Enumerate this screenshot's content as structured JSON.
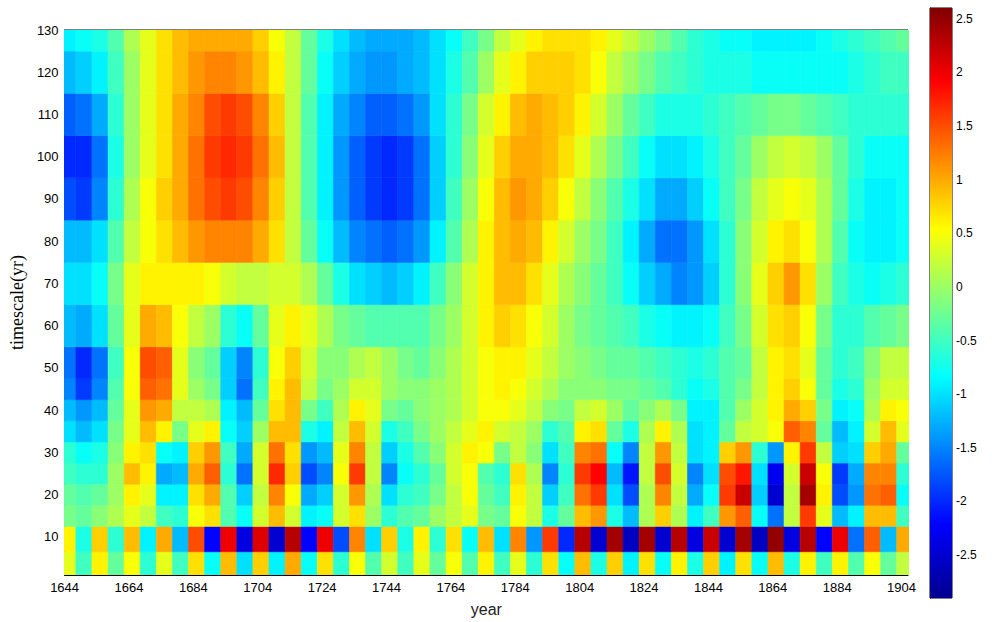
{
  "chart_data": {
    "type": "heatmap",
    "xlabel": "year",
    "ylabel": "timescale(yr)",
    "xlim": [
      1644,
      1906
    ],
    "xticks": [
      1644,
      1664,
      1684,
      1704,
      1724,
      1744,
      1764,
      1784,
      1804,
      1824,
      1844,
      1864,
      1884,
      1904
    ],
    "ylim": [
      1,
      130
    ],
    "yticks": [
      10,
      20,
      30,
      40,
      50,
      60,
      70,
      80,
      90,
      100,
      110,
      120,
      130
    ],
    "grid": false,
    "color_range": [
      -2.9,
      2.6
    ],
    "color_ticks": [
      2.5,
      2,
      1.5,
      1,
      0.5,
      0,
      -0.5,
      -1,
      -1.5,
      -2,
      -2.5
    ],
    "x": [
      1645,
      1650,
      1655,
      1660,
      1665,
      1670,
      1675,
      1680,
      1685,
      1690,
      1695,
      1700,
      1705,
      1710,
      1715,
      1720,
      1725,
      1730,
      1735,
      1740,
      1745,
      1750,
      1755,
      1760,
      1765,
      1770,
      1775,
      1780,
      1785,
      1790,
      1795,
      1800,
      1805,
      1810,
      1815,
      1820,
      1825,
      1830,
      1835,
      1840,
      1845,
      1850,
      1855,
      1860,
      1865,
      1870,
      1875,
      1880,
      1885,
      1890,
      1895,
      1900,
      1905
    ],
    "y": [
      3,
      10,
      15,
      20,
      25,
      30,
      35,
      40,
      45,
      50,
      60,
      70,
      80,
      90,
      100,
      110,
      120,
      130
    ],
    "values": [
      [
        0.4,
        -0.5,
        0.6,
        -0.3,
        0.5,
        -0.6,
        0.4,
        -0.5,
        0.7,
        -0.8,
        0.9,
        -1.0,
        0.8,
        -0.9,
        1.0,
        -0.8,
        0.7,
        -0.6,
        0.5,
        -0.4,
        0.3,
        -0.5,
        0.4,
        -0.3,
        0.5,
        -0.4,
        0.6,
        -0.5,
        0.4,
        -0.6,
        0.7,
        -0.8,
        0.9,
        -0.7,
        0.8,
        -0.9,
        0.7,
        -0.8,
        0.6,
        -0.7,
        0.8,
        -0.9,
        0.7,
        -0.8,
        0.9,
        -0.7,
        0.6,
        -0.5,
        0.6,
        -0.4,
        0.5,
        -0.3,
        0.2
      ],
      [
        0.6,
        -0.7,
        0.8,
        -0.6,
        0.9,
        -0.9,
        1.0,
        -1.2,
        1.5,
        -2.2,
        2.0,
        -2.4,
        2.1,
        -2.5,
        2.3,
        -2.2,
        2.0,
        -1.8,
        1.2,
        -1.0,
        0.8,
        -0.7,
        0.6,
        -0.6,
        0.7,
        -0.8,
        0.9,
        -1.0,
        1.2,
        -1.4,
        1.6,
        -2.0,
        2.3,
        -2.5,
        2.4,
        -2.6,
        2.4,
        -2.5,
        2.3,
        -2.4,
        2.2,
        -2.5,
        2.4,
        -2.6,
        2.5,
        -2.4,
        2.3,
        -2.2,
        2.0,
        -1.6,
        1.4,
        -1.2,
        1.0
      ],
      [
        -0.2,
        -0.3,
        -0.1,
        0.1,
        0.4,
        0.2,
        -0.5,
        -0.6,
        0.5,
        0.7,
        -0.4,
        -0.8,
        0.3,
        0.9,
        0.3,
        -0.9,
        -0.8,
        0.3,
        0.7,
        0.0,
        -0.6,
        -0.4,
        -0.3,
        0.0,
        0.2,
        0.4,
        -0.2,
        -0.3,
        0.5,
        0.2,
        -0.7,
        -0.3,
        0.9,
        1.1,
        -0.7,
        -1.2,
        0.1,
        0.8,
        0.1,
        -0.9,
        -0.5,
        1.1,
        1.4,
        -0.8,
        -1.6,
        0.2,
        1.6,
        0.4,
        -1.2,
        -0.9,
        0.9,
        0.9,
        -0.5
      ],
      [
        -0.3,
        -0.4,
        -0.3,
        0.0,
        0.6,
        0.4,
        -0.9,
        -0.9,
        0.7,
        1.0,
        -0.4,
        -1.1,
        0.2,
        1.2,
        0.5,
        -1.3,
        -1.1,
        0.3,
        1.1,
        0.1,
        -1.0,
        -0.6,
        -0.5,
        -0.2,
        0.2,
        0.5,
        -0.3,
        -0.5,
        0.6,
        0.2,
        -1.1,
        -0.5,
        1.3,
        1.6,
        -1.0,
        -1.8,
        0.1,
        1.2,
        0.2,
        -1.3,
        -0.8,
        1.6,
        2.2,
        -1.1,
        -2.5,
        0.2,
        2.4,
        0.6,
        -1.8,
        -1.4,
        1.3,
        1.4,
        -0.8
      ],
      [
        -0.5,
        -0.6,
        -0.6,
        0.0,
        0.9,
        0.6,
        -1.3,
        -1.2,
        1.0,
        1.4,
        -0.6,
        -1.6,
        0.3,
        1.7,
        0.8,
        -1.8,
        -1.5,
        0.5,
        1.6,
        0.2,
        -1.5,
        -0.8,
        -0.6,
        -0.3,
        0.3,
        0.5,
        -0.4,
        -0.6,
        0.7,
        0.1,
        -1.5,
        -0.6,
        1.6,
        1.9,
        -1.2,
        -2.1,
        0.2,
        1.5,
        0.3,
        -1.5,
        -1.0,
        1.5,
        1.8,
        -1.0,
        -2.3,
        0.3,
        2.2,
        0.5,
        -1.9,
        -1.3,
        1.2,
        1.2,
        -0.6
      ],
      [
        -0.6,
        -0.8,
        -0.7,
        -0.1,
        0.6,
        0.7,
        -0.8,
        -0.9,
        0.8,
        1.1,
        -0.5,
        -1.3,
        0.3,
        1.3,
        0.7,
        -1.4,
        -1.2,
        0.4,
        1.2,
        0.2,
        -1.1,
        -0.7,
        -0.4,
        -0.1,
        0.3,
        0.6,
        0.5,
        -0.2,
        0.2,
        -0.1,
        -1.0,
        -0.5,
        1.2,
        1.3,
        -0.8,
        -1.5,
        0.2,
        1.1,
        0.2,
        -1.0,
        -0.9,
        0.8,
        1.1,
        -0.6,
        -1.4,
        0.6,
        1.6,
        0.2,
        -1.1,
        -1.0,
        0.8,
        1.0,
        -0.3
      ],
      [
        -1.0,
        -1.2,
        -1.0,
        -0.2,
        0.4,
        0.9,
        0.6,
        -0.2,
        0.4,
        0.6,
        -0.8,
        -1.1,
        0.0,
        0.9,
        0.9,
        -0.7,
        -0.9,
        0.2,
        0.9,
        0.3,
        -0.7,
        -0.5,
        -0.2,
        0.0,
        0.2,
        0.4,
        0.6,
        0.3,
        0.2,
        0.0,
        -0.6,
        -0.4,
        0.6,
        0.7,
        -0.3,
        -0.7,
        0.1,
        0.6,
        0.1,
        -1.0,
        -0.9,
        -0.3,
        0.2,
        0.3,
        0.5,
        1.4,
        1.2,
        -0.3,
        -1.2,
        -0.9,
        0.3,
        0.9,
        0.4
      ],
      [
        -1.2,
        -1.4,
        -1.2,
        -0.3,
        0.4,
        1.1,
        1.0,
        0.2,
        0.2,
        0.1,
        -0.9,
        -1.2,
        -0.3,
        0.7,
        0.9,
        -0.2,
        -0.5,
        0.1,
        0.6,
        0.4,
        -0.2,
        -0.3,
        -0.1,
        0.0,
        0.1,
        0.3,
        0.5,
        0.5,
        0.4,
        0.2,
        -0.1,
        -0.2,
        0.2,
        0.3,
        0.0,
        -0.3,
        -0.1,
        0.1,
        -0.2,
        -0.9,
        -0.9,
        -0.4,
        0.0,
        0.3,
        0.6,
        1.0,
        0.8,
        -0.2,
        -0.9,
        -0.8,
        0.1,
        0.6,
        0.5
      ],
      [
        -1.5,
        -1.9,
        -1.5,
        -0.4,
        0.5,
        1.4,
        1.3,
        0.4,
        0.0,
        -0.2,
        -1.1,
        -1.6,
        -0.5,
        0.6,
        0.9,
        0.2,
        -0.2,
        0.0,
        0.3,
        0.3,
        0.0,
        -0.1,
        -0.1,
        0.0,
        0.1,
        0.3,
        0.5,
        0.6,
        0.5,
        0.3,
        0.1,
        -0.1,
        -0.1,
        -0.1,
        -0.2,
        -0.2,
        -0.3,
        -0.4,
        -0.6,
        -0.8,
        -0.7,
        -0.4,
        -0.2,
        0.2,
        0.6,
        0.8,
        0.5,
        -0.3,
        -0.7,
        -0.6,
        0.0,
        0.3,
        0.3
      ],
      [
        -1.6,
        -2.0,
        -1.6,
        -0.5,
        0.5,
        1.5,
        1.4,
        0.4,
        -0.1,
        -0.3,
        -1.1,
        -1.5,
        -0.6,
        0.5,
        0.8,
        0.3,
        -0.1,
        -0.1,
        0.1,
        0.2,
        0.0,
        -0.2,
        -0.3,
        -0.1,
        0.1,
        0.3,
        0.5,
        0.6,
        0.6,
        0.4,
        0.2,
        0.0,
        -0.1,
        -0.2,
        -0.3,
        -0.3,
        -0.4,
        -0.5,
        -0.6,
        -0.7,
        -0.6,
        -0.4,
        -0.3,
        0.2,
        0.6,
        0.7,
        0.4,
        -0.3,
        -0.6,
        -0.5,
        -0.1,
        0.2,
        0.2
      ],
      [
        -1.2,
        -1.3,
        -1.0,
        -0.3,
        0.4,
        1.0,
        0.9,
        0.5,
        0.2,
        0.0,
        -0.6,
        -0.8,
        -0.3,
        0.4,
        0.6,
        0.4,
        0.1,
        -0.2,
        -0.3,
        -0.4,
        -0.4,
        -0.4,
        -0.4,
        -0.2,
        0.0,
        0.3,
        0.6,
        0.8,
        0.7,
        0.5,
        0.3,
        0.0,
        -0.2,
        -0.3,
        -0.4,
        -0.5,
        -0.7,
        -0.8,
        -0.9,
        -0.9,
        -0.8,
        -0.5,
        -0.2,
        0.3,
        0.7,
        0.8,
        0.5,
        -0.2,
        -0.6,
        -0.6,
        -0.4,
        -0.3,
        -0.2
      ],
      [
        -1.0,
        -1.0,
        -0.8,
        -0.2,
        0.4,
        0.6,
        0.6,
        0.6,
        0.6,
        0.5,
        0.3,
        0.2,
        0.2,
        0.3,
        0.3,
        0.1,
        -0.3,
        -0.7,
        -1.0,
        -1.1,
        -1.2,
        -1.1,
        -0.9,
        -0.5,
        -0.1,
        0.3,
        0.6,
        0.9,
        0.9,
        0.7,
        0.4,
        0.1,
        -0.1,
        -0.3,
        -0.5,
        -0.8,
        -1.1,
        -1.3,
        -1.5,
        -1.4,
        -1.1,
        -0.6,
        -0.1,
        0.4,
        0.8,
        1.1,
        0.7,
        0.0,
        -0.5,
        -0.7,
        -0.8,
        -0.7,
        -0.6
      ],
      [
        -1.2,
        -1.2,
        -1.0,
        -0.4,
        0.2,
        0.5,
        0.7,
        0.9,
        1.1,
        1.2,
        1.2,
        1.2,
        1.0,
        0.7,
        0.2,
        -0.3,
        -0.8,
        -1.2,
        -1.5,
        -1.6,
        -1.7,
        -1.6,
        -1.4,
        -0.9,
        -0.4,
        0.1,
        0.6,
        0.9,
        1.0,
        0.9,
        0.6,
        0.3,
        0.0,
        -0.2,
        -0.5,
        -0.9,
        -1.3,
        -1.6,
        -1.6,
        -1.4,
        -1.0,
        -0.6,
        -0.1,
        0.3,
        0.6,
        0.7,
        0.5,
        0.1,
        -0.4,
        -0.8,
        -0.9,
        -0.9,
        -0.8
      ],
      [
        -1.8,
        -1.9,
        -1.5,
        -0.6,
        0.1,
        0.5,
        0.8,
        1.0,
        1.3,
        1.5,
        1.6,
        1.5,
        1.2,
        0.8,
        0.2,
        -0.4,
        -0.9,
        -1.4,
        -1.7,
        -1.9,
        -2.0,
        -1.9,
        -1.6,
        -1.1,
        -0.5,
        0.0,
        0.5,
        0.9,
        1.1,
        1.0,
        0.8,
        0.5,
        0.2,
        -0.1,
        -0.4,
        -0.7,
        -1.0,
        -1.3,
        -1.3,
        -1.1,
        -0.8,
        -0.5,
        -0.2,
        0.2,
        0.4,
        0.5,
        0.4,
        0.1,
        -0.3,
        -0.7,
        -0.9,
        -0.9,
        -0.8
      ],
      [
        -2.0,
        -2.0,
        -1.6,
        -0.7,
        0.0,
        0.4,
        0.7,
        1.0,
        1.3,
        1.6,
        1.7,
        1.6,
        1.3,
        0.9,
        0.2,
        -0.4,
        -0.9,
        -1.4,
        -1.7,
        -1.9,
        -2.0,
        -1.9,
        -1.6,
        -1.1,
        -0.6,
        -0.1,
        0.4,
        0.8,
        1.0,
        1.0,
        0.9,
        0.7,
        0.4,
        0.1,
        -0.2,
        -0.5,
        -0.8,
        -1.0,
        -1.0,
        -0.9,
        -0.7,
        -0.5,
        -0.3,
        0.0,
        0.2,
        0.3,
        0.2,
        0.0,
        -0.3,
        -0.6,
        -0.8,
        -0.8,
        -0.8
      ],
      [
        -1.7,
        -1.6,
        -1.3,
        -0.6,
        0.0,
        0.4,
        0.7,
        1.0,
        1.2,
        1.5,
        1.6,
        1.5,
        1.2,
        0.8,
        0.2,
        -0.4,
        -0.9,
        -1.3,
        -1.5,
        -1.7,
        -1.7,
        -1.6,
        -1.4,
        -1.0,
        -0.6,
        -0.2,
        0.3,
        0.6,
        0.9,
        1.0,
        0.9,
        0.8,
        0.6,
        0.3,
        0.0,
        -0.3,
        -0.5,
        -0.7,
        -0.7,
        -0.7,
        -0.6,
        -0.5,
        -0.4,
        -0.3,
        -0.2,
        -0.2,
        -0.3,
        -0.4,
        -0.5,
        -0.6,
        -0.6,
        -0.6,
        -0.6
      ],
      [
        -1.2,
        -1.1,
        -0.9,
        -0.5,
        0.0,
        0.4,
        0.7,
        0.9,
        1.1,
        1.2,
        1.2,
        1.1,
        0.9,
        0.6,
        0.2,
        -0.3,
        -0.8,
        -1.1,
        -1.3,
        -1.4,
        -1.4,
        -1.3,
        -1.2,
        -1.0,
        -0.7,
        -0.4,
        0.0,
        0.4,
        0.6,
        0.8,
        0.8,
        0.8,
        0.7,
        0.5,
        0.2,
        0.0,
        -0.2,
        -0.4,
        -0.5,
        -0.6,
        -0.7,
        -0.7,
        -0.7,
        -0.8,
        -0.8,
        -0.8,
        -0.8,
        -0.8,
        -0.8,
        -0.7,
        -0.6,
        -0.5,
        -0.5
      ],
      [
        -0.9,
        -0.8,
        -0.7,
        -0.4,
        0.1,
        0.4,
        0.7,
        0.9,
        1.0,
        1.0,
        1.0,
        1.0,
        0.8,
        0.5,
        0.2,
        -0.3,
        -0.7,
        -1.0,
        -1.2,
        -1.3,
        -1.3,
        -1.3,
        -1.2,
        -1.0,
        -0.8,
        -0.5,
        -0.2,
        0.2,
        0.4,
        0.6,
        0.7,
        0.7,
        0.7,
        0.6,
        0.4,
        0.2,
        0.0,
        -0.2,
        -0.4,
        -0.6,
        -0.7,
        -0.8,
        -0.8,
        -0.9,
        -0.9,
        -0.9,
        -0.9,
        -0.8,
        -0.7,
        -0.6,
        -0.5,
        -0.4,
        -0.3
      ]
    ]
  }
}
